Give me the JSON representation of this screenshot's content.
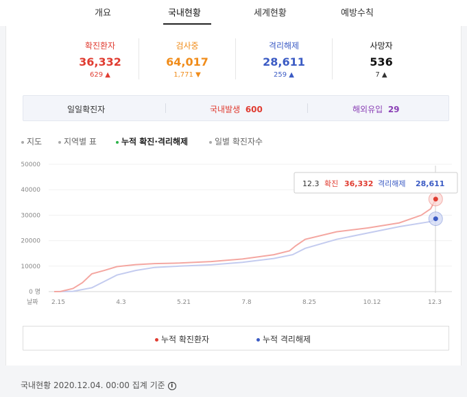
{
  "tabs": [
    {
      "label": "개요"
    },
    {
      "label": "국내현황"
    },
    {
      "label": "세계현황"
    },
    {
      "label": "예방수칙"
    }
  ],
  "stats": [
    {
      "label": "확진환자",
      "value": "36,332",
      "delta": "629",
      "direction": "up",
      "color": "#e03c31"
    },
    {
      "label": "검사중",
      "value": "64,017",
      "delta": "1,771",
      "direction": "down",
      "color": "#f08c1a"
    },
    {
      "label": "격리해제",
      "value": "28,611",
      "delta": "259",
      "direction": "up",
      "color": "#3b5bc4"
    },
    {
      "label": "사망자",
      "value": "536",
      "delta": "7",
      "direction": "up",
      "color": "#111111"
    }
  ],
  "daily": {
    "label": "일일확진자",
    "domestic_label": "국내발생",
    "domestic_value": "600",
    "overseas_label": "해외유입",
    "overseas_value": "29"
  },
  "view_modes": [
    {
      "label": "지도"
    },
    {
      "label": "지역별 표"
    },
    {
      "label": "누적 확진·격리해제",
      "active": true
    },
    {
      "label": "일별 확진자수"
    }
  ],
  "tooltip": {
    "date": "12.3",
    "confirmed_label": "확진",
    "confirmed_value": "36,332",
    "released_label": "격리해제",
    "released_value": "28,611"
  },
  "chart_data": {
    "type": "line",
    "x_label": "날짜",
    "x_ticks": [
      "2.15",
      "4.3",
      "5.21",
      "7.8",
      "8.25",
      "10.12",
      "12.3"
    ],
    "y_ticks": [
      "0 명",
      "10000",
      "20000",
      "30000",
      "40000",
      "50000"
    ],
    "ylim": [
      0,
      50000
    ],
    "series": [
      {
        "name": "누적 확진환자",
        "color": "#f4a6a0",
        "points": [
          [
            0,
            0
          ],
          [
            0.1,
            30
          ],
          [
            0.3,
            1200
          ],
          [
            0.45,
            3500
          ],
          [
            0.6,
            7000
          ],
          [
            0.8,
            8300
          ],
          [
            1.0,
            9800
          ],
          [
            1.3,
            10600
          ],
          [
            1.6,
            11000
          ],
          [
            2.0,
            11200
          ],
          [
            2.5,
            11800
          ],
          [
            3.0,
            12800
          ],
          [
            3.5,
            14500
          ],
          [
            3.75,
            16000
          ],
          [
            3.85,
            18000
          ],
          [
            4.0,
            20500
          ],
          [
            4.5,
            23500
          ],
          [
            5.0,
            25000
          ],
          [
            5.5,
            27000
          ],
          [
            5.85,
            30000
          ],
          [
            6.0,
            32500
          ],
          [
            6.08,
            36332
          ]
        ]
      },
      {
        "name": "누적 격리해제",
        "color": "#c3cbef",
        "points": [
          [
            0,
            0
          ],
          [
            0.3,
            100
          ],
          [
            0.6,
            1500
          ],
          [
            0.8,
            4000
          ],
          [
            1.0,
            6500
          ],
          [
            1.3,
            8300
          ],
          [
            1.6,
            9500
          ],
          [
            2.0,
            10000
          ],
          [
            2.5,
            10500
          ],
          [
            3.0,
            11500
          ],
          [
            3.5,
            13000
          ],
          [
            3.8,
            14500
          ],
          [
            4.0,
            17000
          ],
          [
            4.5,
            20500
          ],
          [
            5.0,
            23000
          ],
          [
            5.5,
            25500
          ],
          [
            6.0,
            27500
          ],
          [
            6.08,
            28611
          ]
        ]
      }
    ]
  },
  "legend": [
    {
      "label": "누적 확진환자",
      "color": "#e03c31"
    },
    {
      "label": "누적 격리해제",
      "color": "#3b5bc4"
    }
  ],
  "footer": {
    "text": "국내현황 2020.12.04. 00:00 집계 기준",
    "icon": "info-icon"
  }
}
